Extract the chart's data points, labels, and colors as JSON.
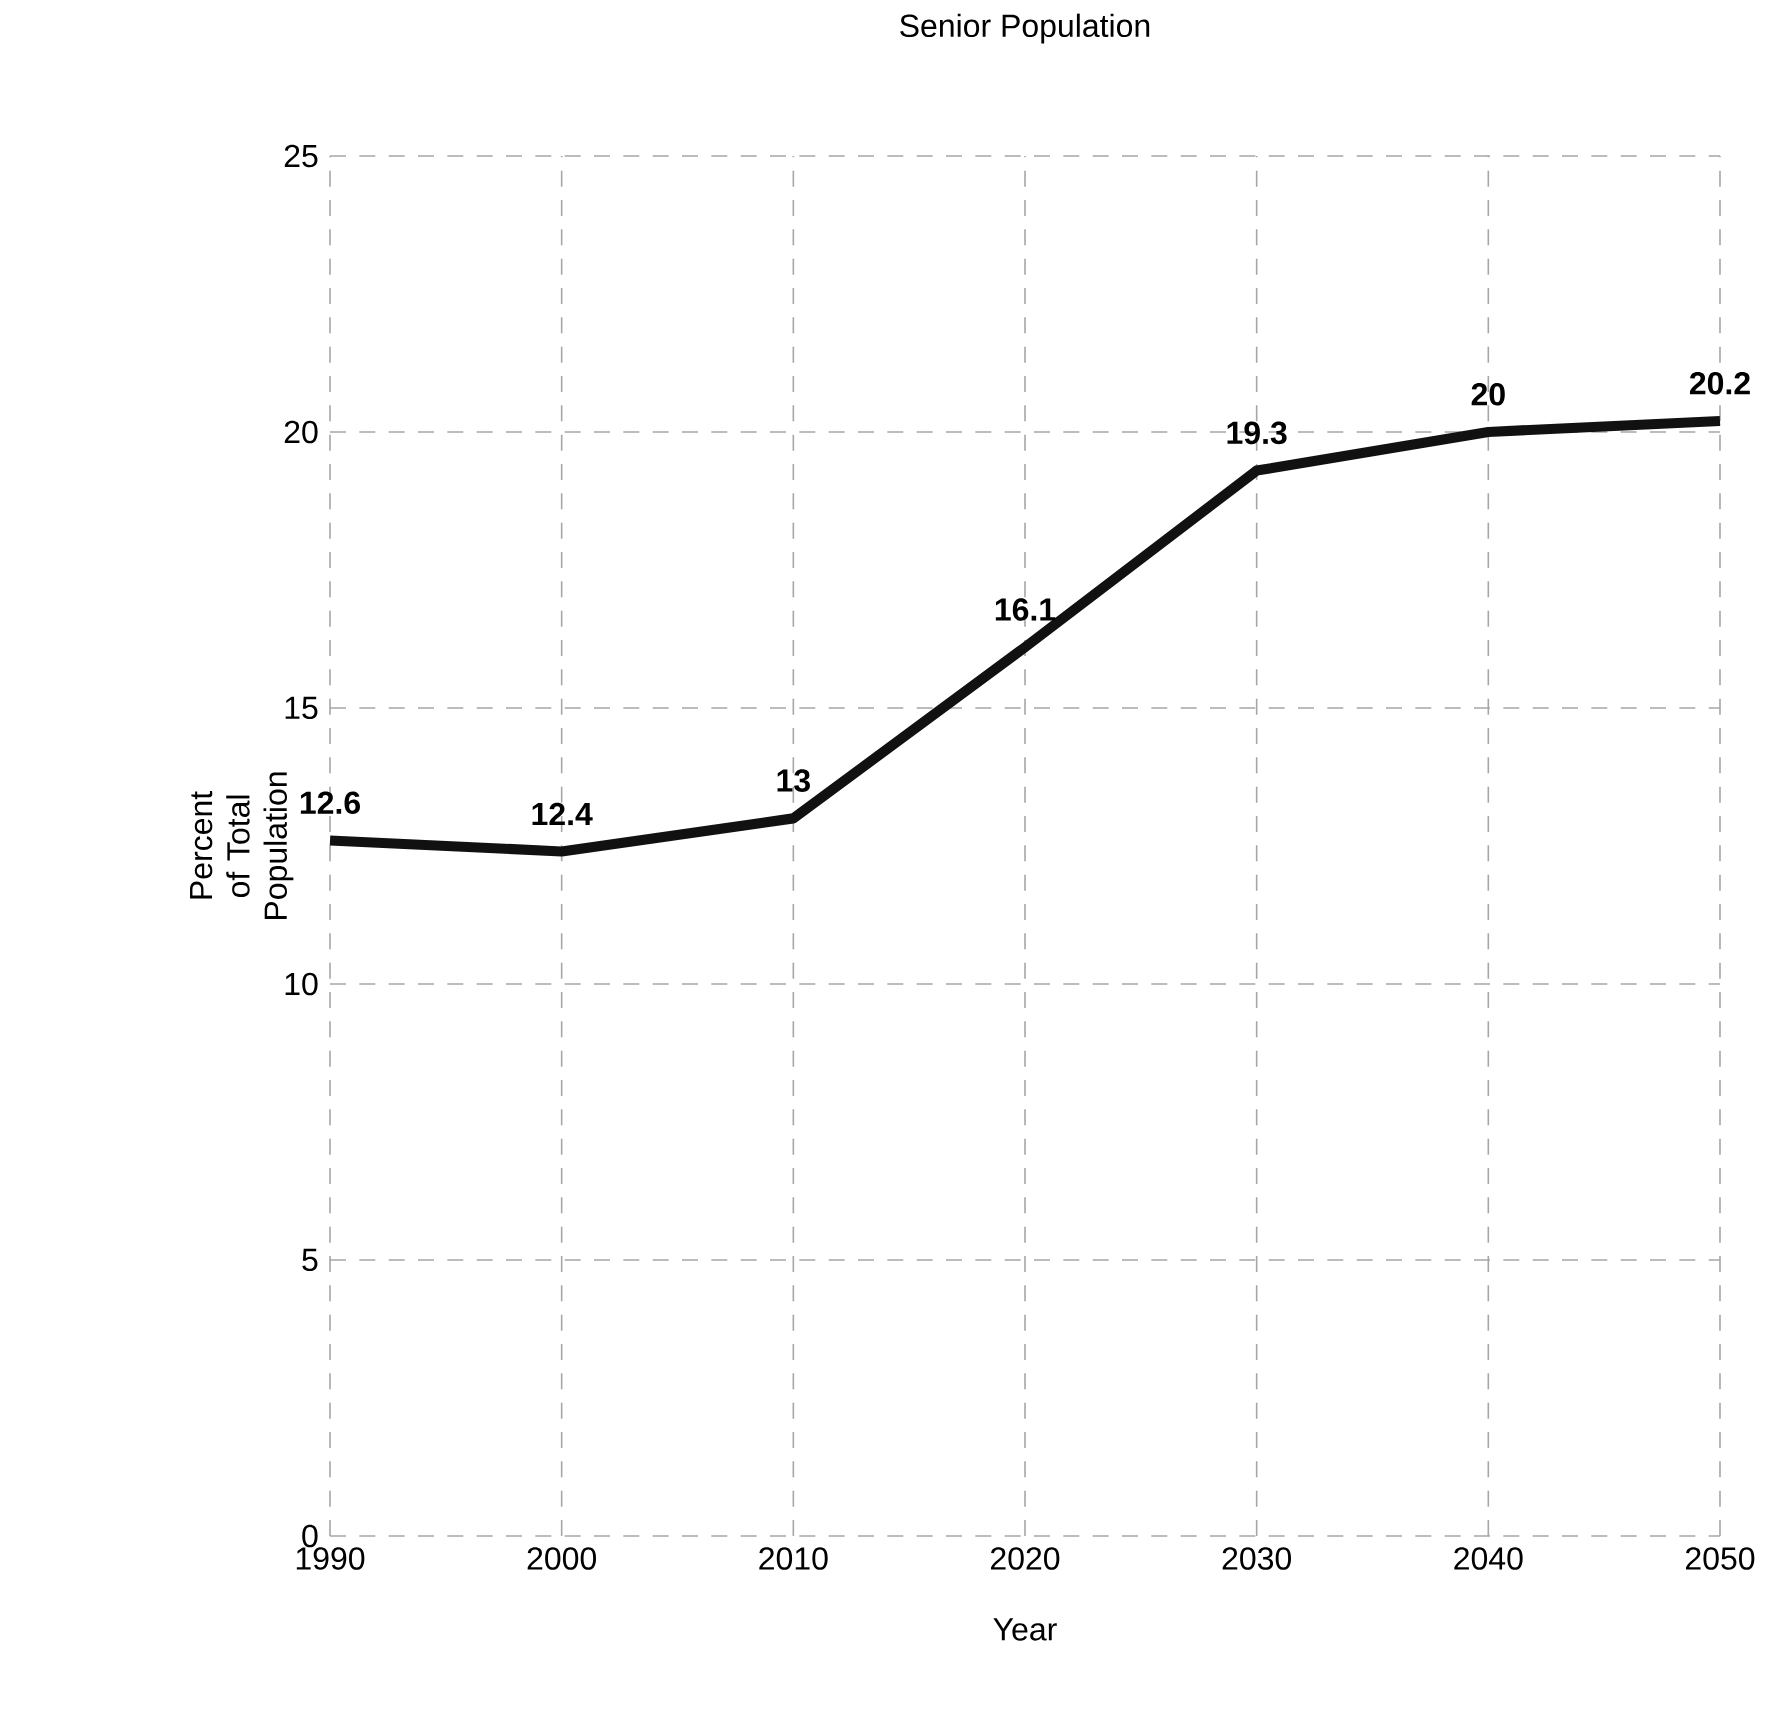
{
  "chart_data": {
    "type": "line",
    "title": "Senior Population",
    "xlabel": "Year",
    "ylabel": "Percent of Total Population",
    "x": [
      1990,
      2000,
      2010,
      2020,
      2030,
      2040,
      2050
    ],
    "values": [
      12.6,
      12.4,
      13,
      16.1,
      19.3,
      20,
      20.2
    ],
    "color": "#111111",
    "xlim": [
      1990,
      2050
    ],
    "ylim": [
      0,
      25
    ],
    "xticks": [
      1990,
      2000,
      2010,
      2020,
      2030,
      2040,
      2050
    ],
    "yticks": [
      0,
      5,
      10,
      15,
      20,
      25
    ],
    "grid": true,
    "data_labels": true
  }
}
